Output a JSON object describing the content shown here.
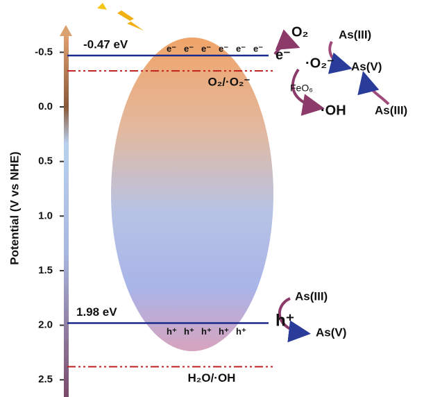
{
  "axis": {
    "label": "Potential (V vs NHE)",
    "ylim": [
      -0.75,
      2.6
    ],
    "yticks": [
      {
        "value": -0.5,
        "label": "-0.5"
      },
      {
        "value": 0,
        "label": "0.0"
      },
      {
        "value": 0.5,
        "label": "0.5"
      },
      {
        "value": 1,
        "label": "1.0"
      },
      {
        "value": 1.5,
        "label": "1.5"
      },
      {
        "value": 2,
        "label": "2.0"
      },
      {
        "value": 2.5,
        "label": "2.5"
      }
    ]
  },
  "bands": [
    {
      "label": "-0.47 eV",
      "value": -0.47,
      "carriers": [
        "e⁻",
        "e⁻",
        "e⁻",
        "e⁻",
        "e⁻",
        "e⁻"
      ]
    },
    {
      "label": "1.98 eV",
      "value": 1.98,
      "carriers": [
        "h⁺",
        "h⁺",
        "h⁺",
        "h⁺",
        "h⁺"
      ]
    }
  ],
  "redox": [
    {
      "label": "O₂/·O₂⁻",
      "value": -0.33
    },
    {
      "label": "H₂O/·OH",
      "value": 2.38
    }
  ],
  "reactions": {
    "upper": {
      "o2": "O₂",
      "e": "e⁻",
      "superoxide": "·O₂⁻",
      "as3a": "As(III)",
      "as5": "As(V)",
      "catalyst": "FeO₆",
      "oh": "·OH",
      "as3b": "As(III)"
    },
    "lower": {
      "as3": "As(III)",
      "h": "h⁺",
      "as5": "As(V)"
    }
  }
}
